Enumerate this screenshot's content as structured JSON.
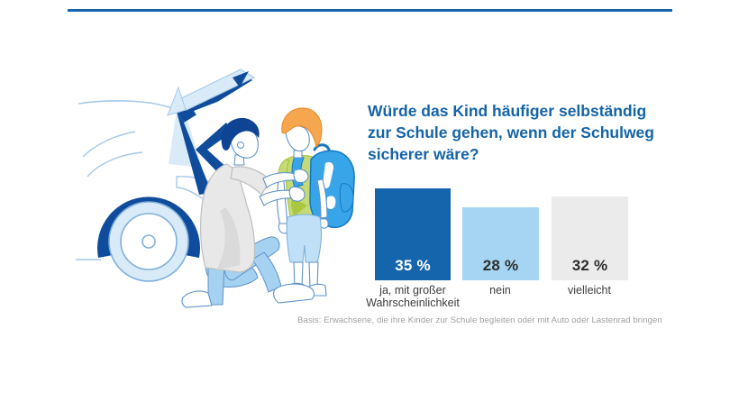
{
  "page": {
    "background": "#FFFFFF",
    "top_rule_color": "#1565AD"
  },
  "question": {
    "color": "#1464A8",
    "lines": [
      "Würde das Kind häufiger selbständig",
      "zur Schule gehen, wenn der Schulweg",
      "sicherer wäre?"
    ]
  },
  "chart_data": {
    "type": "bar",
    "title": "Würde das Kind häufiger selbständig zur Schule gehen, wenn der Schulweg sicherer wäre?",
    "categories": [
      "ja, mit großer Wahrscheinlichkeit",
      "nein",
      "vielleicht"
    ],
    "category_lines": [
      [
        "ja, mit großer",
        "Wahrscheinlichkeit"
      ],
      [
        "nein",
        ""
      ],
      [
        "vielleicht",
        ""
      ]
    ],
    "values": [
      35,
      28,
      32
    ],
    "value_labels": [
      "35 %",
      "28 %",
      "32 %"
    ],
    "unit": "%",
    "bar_colors": [
      "#1565AD",
      "#A5D5F2",
      "#EBEBEB"
    ],
    "value_label_colors": [
      "#FFFFFF",
      "#2E2E2E",
      "#2E2E2E"
    ],
    "xlabel": "",
    "ylabel": "",
    "ylim": [
      0,
      35
    ],
    "grid": false,
    "legend": "none",
    "value_label_position": "inside-bottom"
  },
  "footnote": {
    "text": "Basis: Erwachsene, die ihre Kinder zur Schule begleiten oder mit Auto oder Lastenrad bringen"
  },
  "illustration": {
    "description": "Parent kneeling at the open trunk of a car, adjusting the backpack straps of a child before school",
    "palette": {
      "navy": "#0F4C9C",
      "outline": "#A6C9E8",
      "pale": "#D9EAF8",
      "mid": "#7FB0DC",
      "fig": "#5E93C8",
      "trousers": "#A5D2F0",
      "trousers_stroke": "#5E93C8",
      "gray": "#E8E8E8",
      "gray_shade": "#D6D6D6",
      "gray_stroke": "#BFBFBF",
      "hair_navy": "#0E4493",
      "child_hair": "#F6A64F",
      "child_hair_stroke": "#E98A26",
      "green": "#C5D977",
      "green_shade": "#A3C336",
      "backpack": "#38A5E8",
      "backpack_stroke": "#1778C1",
      "shorts": "#BFE0F6",
      "shorts_stroke": "#7FB2DC",
      "white": "#FFFFFF"
    }
  }
}
